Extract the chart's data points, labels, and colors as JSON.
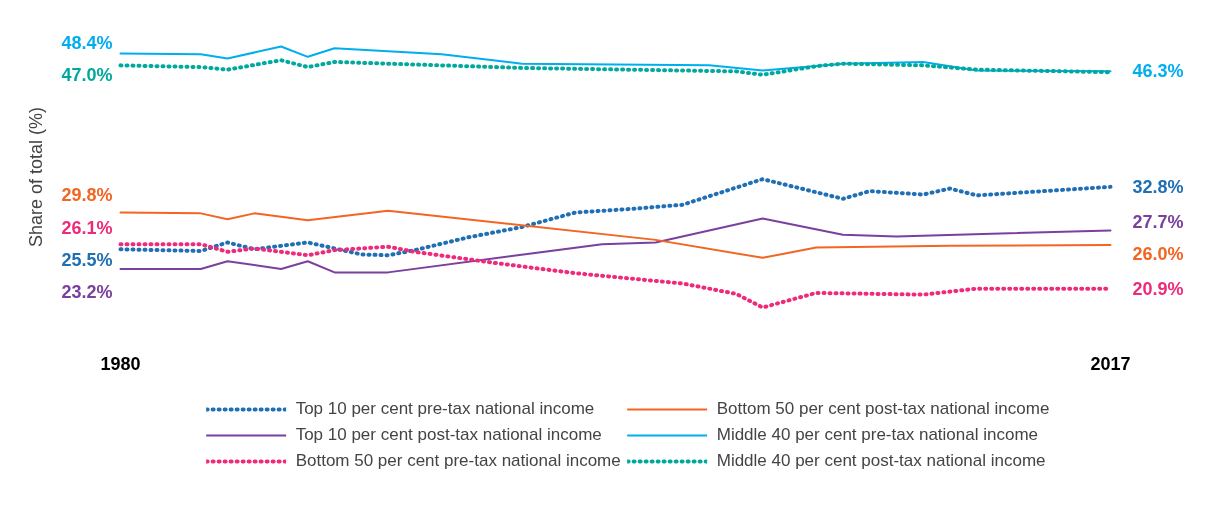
{
  "chart_data": {
    "type": "line",
    "ylabel": "Share of total (%)",
    "xlim": [
      1980,
      2017
    ],
    "xticks": [
      1980,
      2017
    ],
    "legend": "bottom",
    "tick_labels": "x",
    "series": [
      {
        "name": "Top 10 per cent pre-tax national income",
        "color": "#1f6fb5",
        "line_style": "dotted",
        "x": [
          1980,
          1983,
          1984,
          1985,
          1987,
          1989,
          1990,
          1991,
          1993,
          1995,
          1997,
          1999,
          2001,
          2004,
          2007,
          2008,
          2010,
          2011,
          2012,
          2017
        ],
        "values": [
          25.5,
          25.3,
          26.3,
          25.5,
          26.3,
          24.9,
          24.8,
          25.4,
          26.9,
          28.1,
          29.8,
          30.2,
          30.7,
          33.7,
          31.4,
          32.3,
          31.9,
          32.6,
          31.8,
          32.8
        ],
        "value_labels": [
          "25.5%",
          null,
          null,
          null,
          null,
          null,
          null,
          null,
          null,
          null,
          null,
          null,
          null,
          null,
          null,
          null,
          null,
          null,
          null,
          "32.8%"
        ]
      },
      {
        "name": "Top 10 per cent post-tax national income",
        "color": "#7b3f9e",
        "line_style": "solid",
        "x": [
          1980,
          1983,
          1984,
          1986,
          1987,
          1988,
          1990,
          1998,
          2000,
          2004,
          2007,
          2009,
          2017
        ],
        "values": [
          23.2,
          23.2,
          24.1,
          23.2,
          24.1,
          22.8,
          22.8,
          26.1,
          26.3,
          29.1,
          27.2,
          27.0,
          27.7
        ],
        "value_labels": [
          "23.2%",
          null,
          null,
          null,
          null,
          null,
          null,
          null,
          null,
          null,
          null,
          null,
          "27.7%"
        ]
      },
      {
        "name": "Bottom 50 per cent pre-tax national income",
        "color": "#ee2a7b",
        "line_style": "dotted",
        "x": [
          1980,
          1983,
          1984,
          1985,
          1987,
          1988,
          1990,
          1991,
          1994,
          1997,
          2001,
          2003,
          2004,
          2006,
          2010,
          2012,
          2017
        ],
        "values": [
          26.1,
          26.1,
          25.2,
          25.6,
          24.8,
          25.4,
          25.8,
          25.2,
          23.9,
          22.7,
          21.5,
          20.3,
          18.7,
          20.4,
          20.2,
          20.9,
          20.9
        ],
        "value_labels": [
          "26.1%",
          null,
          null,
          null,
          null,
          null,
          null,
          null,
          null,
          null,
          null,
          null,
          null,
          null,
          null,
          null,
          "20.9%"
        ]
      },
      {
        "name": "Bottom 50 per cent post-tax national income",
        "color": "#f26522",
        "line_style": "solid",
        "x": [
          1980,
          1983,
          1984,
          1985,
          1987,
          1990,
          2000,
          2004,
          2006,
          2011,
          2017
        ],
        "values": [
          29.8,
          29.7,
          29.0,
          29.7,
          28.9,
          30.0,
          26.6,
          24.5,
          25.7,
          25.9,
          26.0
        ],
        "value_labels": [
          "29.8%",
          null,
          null,
          null,
          null,
          null,
          null,
          null,
          null,
          null,
          "26.0%"
        ]
      },
      {
        "name": "Middle 40 per cent pre-tax national income",
        "color": "#00aeef",
        "line_style": "solid",
        "x": [
          1980,
          1983,
          1984,
          1986,
          1987,
          1988,
          1992,
          1995,
          2002,
          2004,
          2007,
          2010,
          2012,
          2017
        ],
        "values": [
          48.4,
          48.3,
          47.8,
          49.2,
          48.0,
          49.0,
          48.3,
          47.2,
          47.0,
          46.4,
          47.2,
          47.4,
          46.4,
          46.3
        ],
        "value_labels": [
          "48.4%",
          null,
          null,
          null,
          null,
          null,
          null,
          null,
          null,
          null,
          null,
          null,
          null,
          "46.3%"
        ]
      },
      {
        "name": "Middle 40 per cent post-tax national income",
        "color": "#00a99d",
        "line_style": "dotted",
        "x": [
          1980,
          1983,
          1984,
          1986,
          1987,
          1988,
          1992,
          1995,
          2003,
          2004,
          2006,
          2007,
          2010,
          2012,
          2017
        ],
        "values": [
          47.0,
          46.8,
          46.5,
          47.6,
          46.8,
          47.4,
          47.0,
          46.7,
          46.3,
          45.9,
          46.9,
          47.2,
          47.0,
          46.5,
          46.2
        ],
        "value_labels": [
          "47.0%",
          null,
          null,
          null,
          null,
          null,
          null,
          null,
          null,
          null,
          null,
          null,
          null,
          null,
          null
        ]
      }
    ]
  }
}
